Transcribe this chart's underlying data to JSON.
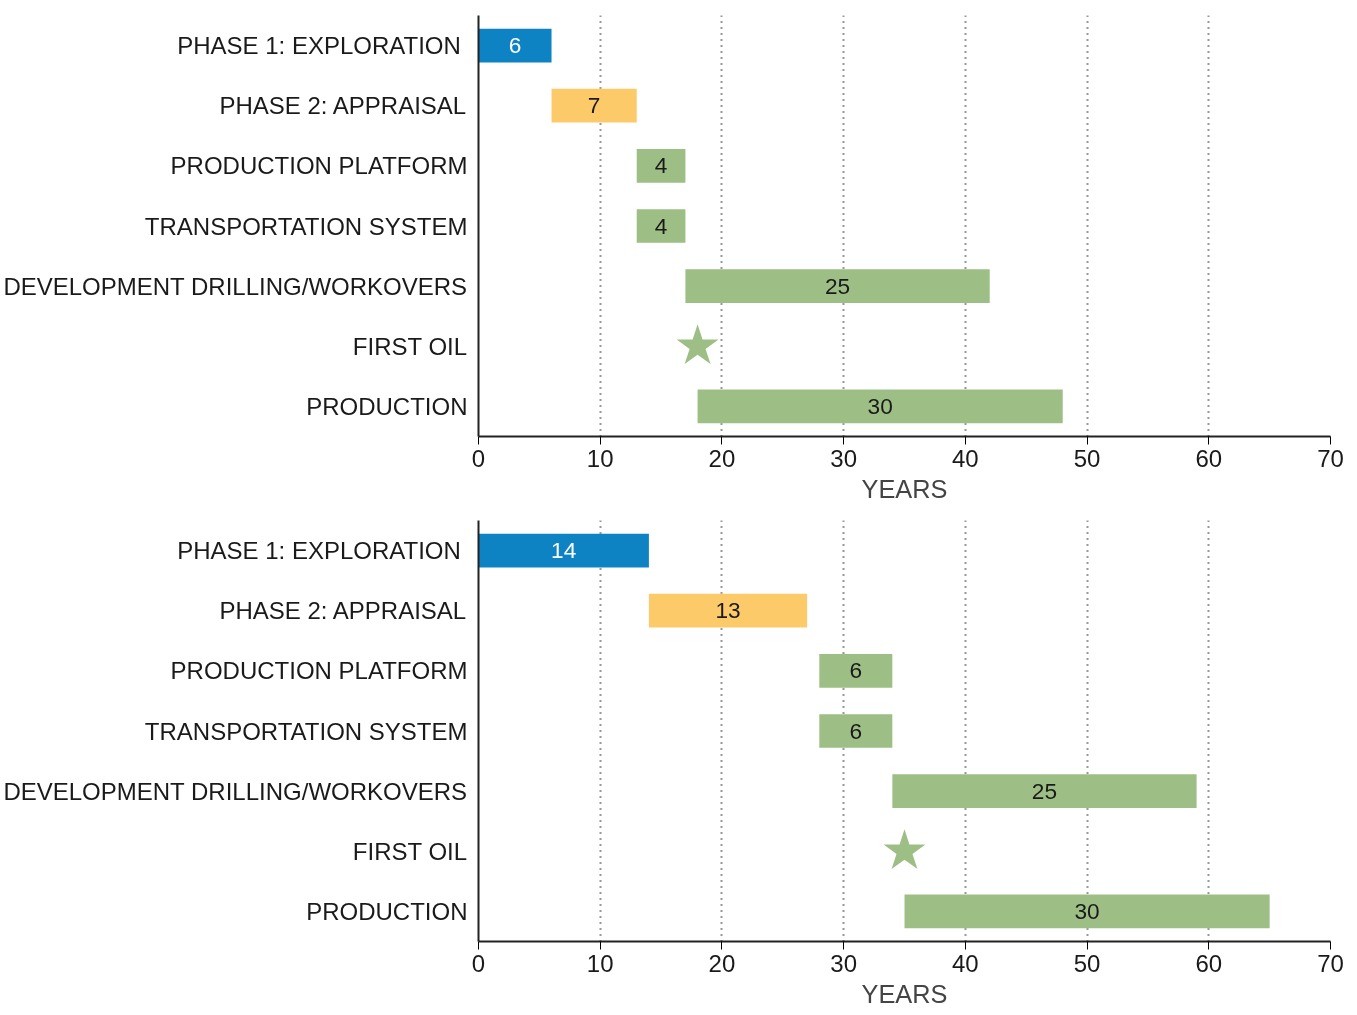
{
  "chart_data": [
    {
      "type": "bar",
      "orientation": "horizontal",
      "categories": [
        "PHASE 1:  EXPLORATION",
        "PHASE 2: APPRAISAL",
        "PRODUCTION PLATFORM",
        "TRANSPORTATION SYSTEM",
        "DEVELOPMENT DRILLING/WORKOVERS",
        "FIRST OIL",
        "PRODUCTION"
      ],
      "series": [
        {
          "base": [
            0,
            6,
            13,
            13,
            17,
            null,
            18
          ],
          "colors": [
            "#0e83c4",
            "#fdca6a",
            "#9dbf85",
            "#9dbf85",
            "#9dbf85",
            null,
            "#9dbf85"
          ],
          "values": [
            6,
            7,
            4,
            4,
            25,
            null,
            30
          ],
          "value_labels": [
            "6",
            "7",
            "4",
            "4",
            "25",
            null,
            "30"
          ]
        },
        {
          "type": "scatter",
          "marker": "star",
          "color": "#9dbf85",
          "values": [
            null,
            null,
            null,
            null,
            null,
            18,
            null
          ]
        }
      ],
      "xlim": [
        0,
        70
      ],
      "xticks": [
        0,
        10,
        20,
        30,
        40,
        50,
        60,
        70
      ],
      "xlabel": "YEARS",
      "grid": "x"
    },
    {
      "type": "bar",
      "orientation": "horizontal",
      "categories": [
        "PHASE 1:  EXPLORATION",
        "PHASE 2: APPRAISAL",
        "PRODUCTION PLATFORM",
        "TRANSPORTATION SYSTEM",
        "DEVELOPMENT DRILLING/WORKOVERS",
        "FIRST OIL",
        "PRODUCTION"
      ],
      "series": [
        {
          "base": [
            0,
            14,
            28,
            28,
            34,
            null,
            35
          ],
          "colors": [
            "#0e83c4",
            "#fdca6a",
            "#9dbf85",
            "#9dbf85",
            "#9dbf85",
            null,
            "#9dbf85"
          ],
          "values": [
            14,
            13,
            6,
            6,
            25,
            null,
            30
          ],
          "value_labels": [
            "14",
            "13",
            "6",
            "6",
            "25",
            null,
            "30"
          ]
        },
        {
          "type": "scatter",
          "marker": "star",
          "color": "#9dbf85",
          "values": [
            null,
            null,
            null,
            null,
            null,
            35,
            null
          ]
        }
      ],
      "xlim": [
        0,
        70
      ],
      "xticks": [
        0,
        10,
        20,
        30,
        40,
        50,
        60,
        70
      ],
      "xlabel": "YEARS",
      "grid": "x"
    }
  ]
}
